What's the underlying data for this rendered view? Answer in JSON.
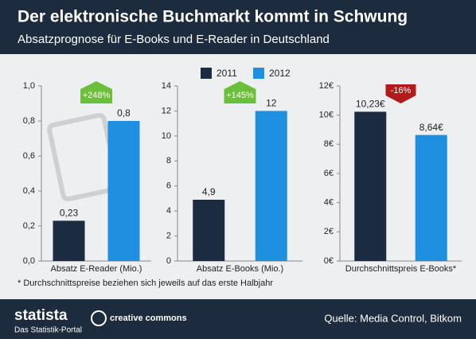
{
  "title": "Der elektronische Buchmarkt kommt in Schwung",
  "subtitle": "Absatzprognose für E-Books und E-Reader in Deutschland",
  "chart_data": [
    {
      "type": "bar",
      "categories": [
        "Absatz E-Reader (Mio.)"
      ],
      "series": [
        {
          "name": "2011",
          "color": "#1b2b40",
          "values": [
            0.23
          ],
          "value_labels": [
            "0,23"
          ]
        },
        {
          "name": "2012",
          "color": "#1f8fe0",
          "values": [
            0.8
          ],
          "value_labels": [
            "0,8"
          ]
        }
      ],
      "ylim": [
        0,
        1
      ],
      "yticks": [
        {
          "value": 0,
          "label": "0,0"
        },
        {
          "value": 0.2,
          "label": "0,2"
        },
        {
          "value": 0.4,
          "label": "0,4"
        },
        {
          "value": 0.6,
          "label": "0,6"
        },
        {
          "value": 0.8,
          "label": "0,8"
        },
        {
          "value": 1,
          "label": "1,0"
        }
      ],
      "annotation": "+248%",
      "annotation_color": "#6cbf3a"
    },
    {
      "type": "bar",
      "categories": [
        "Absatz E-Books (Mio.)"
      ],
      "series": [
        {
          "name": "2011",
          "color": "#1b2b40",
          "values": [
            4.9
          ],
          "value_labels": [
            "4,9"
          ]
        },
        {
          "name": "2012",
          "color": "#1f8fe0",
          "values": [
            12
          ]
        }
      ],
      "ylim": [
        0,
        14
      ],
      "yticks": [
        0,
        2,
        4,
        6,
        8,
        10,
        12,
        14
      ],
      "annotation": "+145%",
      "annotation_color": "#6cbf3a"
    },
    {
      "type": "bar",
      "categories": [
        "Durchschnittspreis E-Books*"
      ],
      "series": [
        {
          "name": "2011",
          "color": "#1b2b40",
          "values": [
            10.23
          ],
          "value_labels": [
            "10,23€"
          ]
        },
        {
          "name": "2012",
          "color": "#1f8fe0",
          "values": [
            8.64
          ],
          "value_labels": [
            "8,64€"
          ]
        }
      ],
      "ylim": [
        0,
        12
      ],
      "yticks": [
        {
          "value": 0,
          "label": "0€"
        },
        {
          "value": 2,
          "label": "2€"
        },
        {
          "value": 4,
          "label": "4€"
        },
        {
          "value": 6,
          "label": "6€"
        },
        {
          "value": 8,
          "label": "8€"
        },
        {
          "value": 10,
          "label": "10€"
        },
        {
          "value": 12,
          "label": "12€"
        }
      ],
      "annotation": "-16%",
      "annotation_color": "#b01c1c"
    }
  ],
  "footnote": "* Durchschnittspreise beziehen sich jeweils auf das erste Halbjahr",
  "footer": {
    "brand": "statista",
    "tagline": "Das Statistik-Portal",
    "license": "creative commons",
    "source": "Quelle: Media Control, Bitkom"
  }
}
